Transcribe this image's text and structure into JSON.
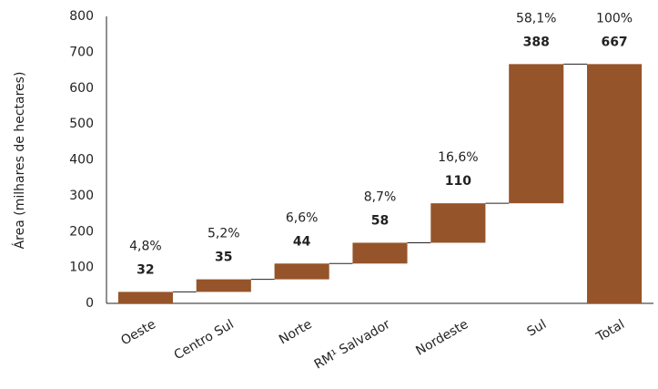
{
  "chart_data": {
    "type": "waterfall",
    "y_label": "Área (milhares de hectares)",
    "categories": [
      "Oeste",
      "Centro Sul",
      "Norte",
      "RM¹ Salvador",
      "Nordeste",
      "Sul",
      "Total"
    ],
    "values": [
      32,
      35,
      44,
      58,
      110,
      388,
      667
    ],
    "measure": [
      "relative",
      "relative",
      "relative",
      "relative",
      "relative",
      "relative",
      "total"
    ],
    "share_labels": [
      "4,8%",
      "5,2%",
      "6,6%",
      "8,7%",
      "16,6%",
      "58,1%",
      "100%"
    ],
    "color": "#96542a",
    "ylim": [
      0,
      800
    ],
    "yticks": [
      0,
      100,
      200,
      300,
      400,
      500,
      600,
      700,
      800
    ],
    "grid": false
  }
}
